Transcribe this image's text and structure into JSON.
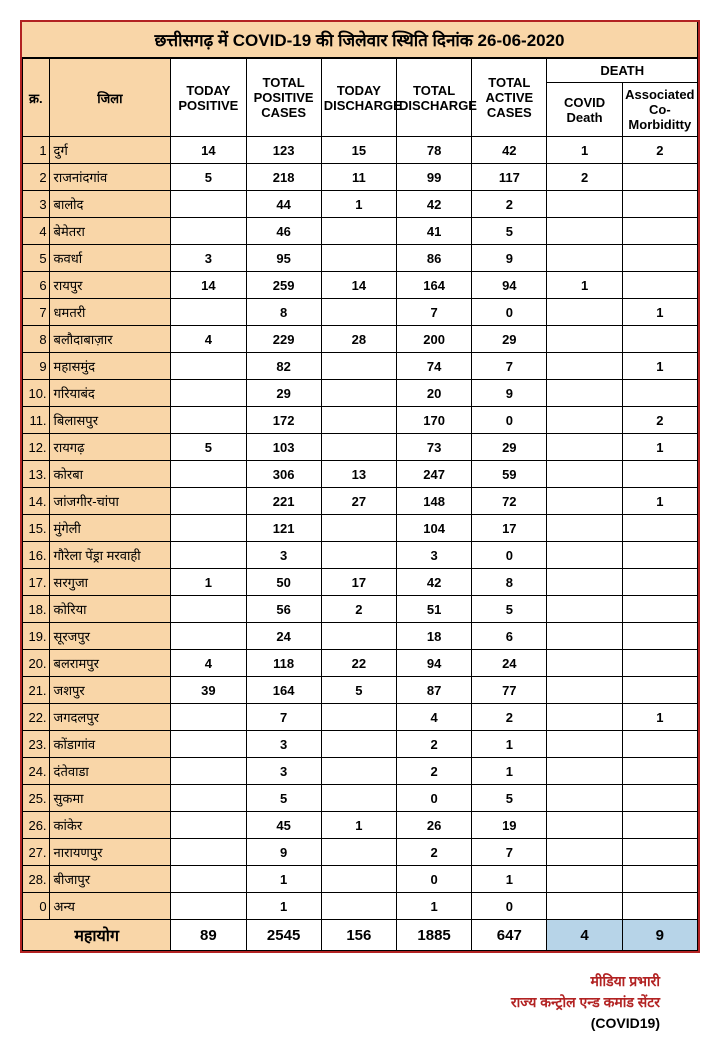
{
  "title": "छत्तीसगढ़ में COVID-19 की जिलेवार स्थिति दिनांक 26-06-2020",
  "headers": {
    "sn": "क्र.",
    "district": "जिला",
    "today_positive": "TODAY POSITIVE",
    "total_positive": "TOTAL POSITIVE CASES",
    "today_discharge": "TODAY DISCHARGE",
    "total_discharge": "TOTAL DISCHARGE",
    "total_active": "TOTAL ACTIVE CASES",
    "death_group": "DEATH",
    "covid_death": "COVID Death",
    "associated": "Associated Co-Morbiditty"
  },
  "rows": [
    {
      "sn": "1",
      "district": "दुर्ग",
      "today_pos": "14",
      "total_pos": "123",
      "today_dis": "15",
      "total_dis": "78",
      "active": "42",
      "cdeath": "1",
      "assoc": "2"
    },
    {
      "sn": "2",
      "district": "राजनांदगांव",
      "today_pos": "5",
      "total_pos": "218",
      "today_dis": "11",
      "total_dis": "99",
      "active": "117",
      "cdeath": "2",
      "assoc": ""
    },
    {
      "sn": "3",
      "district": "बालोद",
      "today_pos": "",
      "total_pos": "44",
      "today_dis": "1",
      "total_dis": "42",
      "active": "2",
      "cdeath": "",
      "assoc": ""
    },
    {
      "sn": "4",
      "district": "बेमेतरा",
      "today_pos": "",
      "total_pos": "46",
      "today_dis": "",
      "total_dis": "41",
      "active": "5",
      "cdeath": "",
      "assoc": ""
    },
    {
      "sn": "5",
      "district": "कवर्धा",
      "today_pos": "3",
      "total_pos": "95",
      "today_dis": "",
      "total_dis": "86",
      "active": "9",
      "cdeath": "",
      "assoc": ""
    },
    {
      "sn": "6",
      "district": "रायपुर",
      "today_pos": "14",
      "total_pos": "259",
      "today_dis": "14",
      "total_dis": "164",
      "active": "94",
      "cdeath": "1",
      "assoc": ""
    },
    {
      "sn": "7",
      "district": "धमतरी",
      "today_pos": "",
      "total_pos": "8",
      "today_dis": "",
      "total_dis": "7",
      "active": "0",
      "cdeath": "",
      "assoc": "1"
    },
    {
      "sn": "8",
      "district": "बलौदाबाज़ार",
      "today_pos": "4",
      "total_pos": "229",
      "today_dis": "28",
      "total_dis": "200",
      "active": "29",
      "cdeath": "",
      "assoc": ""
    },
    {
      "sn": "9",
      "district": "महासमुंद",
      "today_pos": "",
      "total_pos": "82",
      "today_dis": "",
      "total_dis": "74",
      "active": "7",
      "cdeath": "",
      "assoc": "1"
    },
    {
      "sn": "10.",
      "district": "गरियाबंद",
      "today_pos": "",
      "total_pos": "29",
      "today_dis": "",
      "total_dis": "20",
      "active": "9",
      "cdeath": "",
      "assoc": ""
    },
    {
      "sn": "11.",
      "district": "बिलासपुर",
      "today_pos": "",
      "total_pos": "172",
      "today_dis": "",
      "total_dis": "170",
      "active": "0",
      "cdeath": "",
      "assoc": "2"
    },
    {
      "sn": "12.",
      "district": "रायगढ़",
      "today_pos": "5",
      "total_pos": "103",
      "today_dis": "",
      "total_dis": "73",
      "active": "29",
      "cdeath": "",
      "assoc": "1"
    },
    {
      "sn": "13.",
      "district": "कोरबा",
      "today_pos": "",
      "total_pos": "306",
      "today_dis": "13",
      "total_dis": "247",
      "active": "59",
      "cdeath": "",
      "assoc": ""
    },
    {
      "sn": "14.",
      "district": "जांजगीर-चांपा",
      "today_pos": "",
      "total_pos": "221",
      "today_dis": "27",
      "total_dis": "148",
      "active": "72",
      "cdeath": "",
      "assoc": "1"
    },
    {
      "sn": "15.",
      "district": "मुंगेली",
      "today_pos": "",
      "total_pos": "121",
      "today_dis": "",
      "total_dis": "104",
      "active": "17",
      "cdeath": "",
      "assoc": ""
    },
    {
      "sn": "16.",
      "district": "गौरेला पेंड्रा मरवाही",
      "today_pos": "",
      "total_pos": "3",
      "today_dis": "",
      "total_dis": "3",
      "active": "0",
      "cdeath": "",
      "assoc": ""
    },
    {
      "sn": "17.",
      "district": "सरगुजा",
      "today_pos": "1",
      "total_pos": "50",
      "today_dis": "17",
      "total_dis": "42",
      "active": "8",
      "cdeath": "",
      "assoc": ""
    },
    {
      "sn": "18.",
      "district": "कोरिया",
      "today_pos": "",
      "total_pos": "56",
      "today_dis": "2",
      "total_dis": "51",
      "active": "5",
      "cdeath": "",
      "assoc": ""
    },
    {
      "sn": "19.",
      "district": "सूरजपुर",
      "today_pos": "",
      "total_pos": "24",
      "today_dis": "",
      "total_dis": "18",
      "active": "6",
      "cdeath": "",
      "assoc": ""
    },
    {
      "sn": "20.",
      "district": "बलरामपुर",
      "today_pos": "4",
      "total_pos": "118",
      "today_dis": "22",
      "total_dis": "94",
      "active": "24",
      "cdeath": "",
      "assoc": ""
    },
    {
      "sn": "21.",
      "district": "जशपुर",
      "today_pos": "39",
      "total_pos": "164",
      "today_dis": "5",
      "total_dis": "87",
      "active": "77",
      "cdeath": "",
      "assoc": ""
    },
    {
      "sn": "22.",
      "district": "जगदलपुर",
      "today_pos": "",
      "total_pos": "7",
      "today_dis": "",
      "total_dis": "4",
      "active": "2",
      "cdeath": "",
      "assoc": "1"
    },
    {
      "sn": "23.",
      "district": "कोंडागांव",
      "today_pos": "",
      "total_pos": "3",
      "today_dis": "",
      "total_dis": "2",
      "active": "1",
      "cdeath": "",
      "assoc": ""
    },
    {
      "sn": "24.",
      "district": "दंतेवाडा",
      "today_pos": "",
      "total_pos": "3",
      "today_dis": "",
      "total_dis": "2",
      "active": "1",
      "cdeath": "",
      "assoc": ""
    },
    {
      "sn": "25.",
      "district": "सुकमा",
      "today_pos": "",
      "total_pos": "5",
      "today_dis": "",
      "total_dis": "0",
      "active": "5",
      "cdeath": "",
      "assoc": ""
    },
    {
      "sn": "26.",
      "district": "कांकेर",
      "today_pos": "",
      "total_pos": "45",
      "today_dis": "1",
      "total_dis": "26",
      "active": "19",
      "cdeath": "",
      "assoc": ""
    },
    {
      "sn": "27.",
      "district": "नारायणपुर",
      "today_pos": "",
      "total_pos": "9",
      "today_dis": "",
      "total_dis": "2",
      "active": "7",
      "cdeath": "",
      "assoc": ""
    },
    {
      "sn": "28.",
      "district": "बीजापुर",
      "today_pos": "",
      "total_pos": "1",
      "today_dis": "",
      "total_dis": "0",
      "active": "1",
      "cdeath": "",
      "assoc": ""
    },
    {
      "sn": "0",
      "district": "अन्य",
      "today_pos": "",
      "total_pos": "1",
      "today_dis": "",
      "total_dis": "1",
      "active": "0",
      "cdeath": "",
      "assoc": ""
    }
  ],
  "grand_total": {
    "label": "महायोग",
    "today_pos": "89",
    "total_pos": "2545",
    "today_dis": "156",
    "total_dis": "1885",
    "active": "647",
    "cdeath": "4",
    "assoc": "9"
  },
  "footer": {
    "line1": "मीडिया प्रभारी",
    "line2": "राज्य कन्ट्रोल एन्ड कमांड सेंटर",
    "line3": "(COVID19)"
  },
  "colors": {
    "header_bg": "#f9d6a8",
    "death_total_bg": "#b7d4e8",
    "border": "#b22222"
  }
}
